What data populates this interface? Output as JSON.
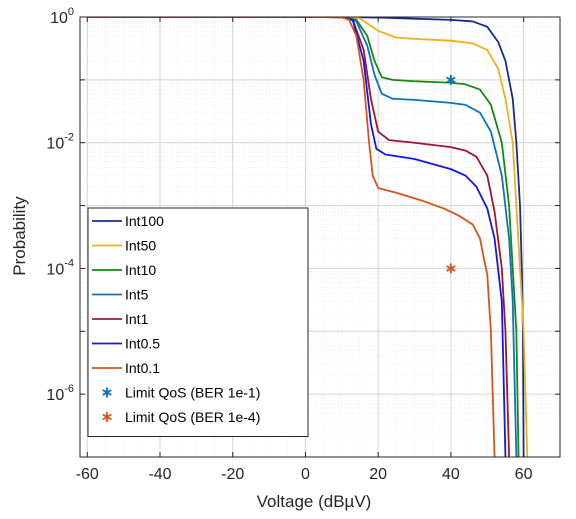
{
  "chart_data": {
    "type": "line",
    "title": "",
    "xlabel": "Voltage (dBµV)",
    "ylabel": "Probability",
    "xscale": "linear",
    "yscale": "log",
    "xlim": [
      -62,
      70
    ],
    "ylim_exp": [
      -7,
      0
    ],
    "x_ticks": [
      -60,
      -40,
      -20,
      0,
      20,
      40,
      60
    ],
    "x_tick_labels": [
      "-60",
      "-40",
      "-20",
      "0",
      "20",
      "40",
      "60"
    ],
    "y_tick_exponents": [
      0,
      -2,
      -4,
      -6
    ],
    "y_tick_base": "10",
    "y_tick_labels": [
      "0",
      "-2",
      "-4",
      "-6"
    ],
    "grid": true,
    "minor_grid": true,
    "legend_position": "bottom-left",
    "series": [
      {
        "name": "Int100",
        "color": "#1b2a8f",
        "points": [
          [
            -60,
            1
          ],
          [
            0,
            1
          ],
          [
            10,
            1
          ],
          [
            20,
            0.98
          ],
          [
            30,
            0.94
          ],
          [
            40,
            0.9
          ],
          [
            46,
            0.85
          ],
          [
            50,
            0.7
          ],
          [
            53,
            0.4
          ],
          [
            55,
            0.2
          ],
          [
            57,
            0.05
          ],
          [
            58,
            0.01
          ],
          [
            59,
            0.001
          ],
          [
            59.5,
            0.0001
          ],
          [
            59.8,
            1e-05
          ],
          [
            60,
            1e-07
          ]
        ]
      },
      {
        "name": "Int50",
        "color": "#edb120",
        "points": [
          [
            -60,
            1
          ],
          [
            0,
            1
          ],
          [
            10,
            0.99
          ],
          [
            15,
            0.95
          ],
          [
            20,
            0.6
          ],
          [
            25,
            0.47
          ],
          [
            30,
            0.45
          ],
          [
            40,
            0.42
          ],
          [
            46,
            0.38
          ],
          [
            50,
            0.3
          ],
          [
            53,
            0.15
          ],
          [
            55,
            0.05
          ],
          [
            57,
            0.01
          ],
          [
            58,
            0.001
          ],
          [
            59,
            0.0001
          ],
          [
            60,
            1e-05
          ],
          [
            61,
            1e-07
          ]
        ]
      },
      {
        "name": "Int10",
        "color": "#138a13",
        "points": [
          [
            -60,
            1
          ],
          [
            0,
            1
          ],
          [
            10,
            0.99
          ],
          [
            14,
            0.9
          ],
          [
            17,
            0.5
          ],
          [
            19,
            0.2
          ],
          [
            21,
            0.11
          ],
          [
            24,
            0.1
          ],
          [
            30,
            0.095
          ],
          [
            40,
            0.09
          ],
          [
            44,
            0.085
          ],
          [
            48,
            0.07
          ],
          [
            51,
            0.04
          ],
          [
            54,
            0.01
          ],
          [
            56,
            0.001
          ],
          [
            57,
            0.0001
          ],
          [
            58,
            1e-05
          ],
          [
            58.6,
            1e-07
          ]
        ]
      },
      {
        "name": "Int5",
        "color": "#0e72bd",
        "points": [
          [
            -60,
            1
          ],
          [
            0,
            1
          ],
          [
            10,
            0.99
          ],
          [
            14,
            0.85
          ],
          [
            17,
            0.35
          ],
          [
            19,
            0.12
          ],
          [
            21,
            0.06
          ],
          [
            24,
            0.05
          ],
          [
            30,
            0.048
          ],
          [
            40,
            0.043
          ],
          [
            44,
            0.04
          ],
          [
            48,
            0.03
          ],
          [
            51,
            0.015
          ],
          [
            54,
            0.003
          ],
          [
            56,
            0.0003
          ],
          [
            57,
            3e-05
          ],
          [
            58,
            1e-07
          ]
        ]
      },
      {
        "name": "Int1",
        "color": "#a2142f",
        "points": [
          [
            -60,
            1
          ],
          [
            0,
            1
          ],
          [
            10,
            0.99
          ],
          [
            13,
            0.9
          ],
          [
            16,
            0.3
          ],
          [
            18,
            0.05
          ],
          [
            20,
            0.015
          ],
          [
            23,
            0.011
          ],
          [
            30,
            0.01
          ],
          [
            40,
            0.0085
          ],
          [
            44,
            0.0075
          ],
          [
            47,
            0.006
          ],
          [
            50,
            0.003
          ],
          [
            52,
            0.0008
          ],
          [
            54,
            0.0001
          ],
          [
            55,
            1e-05
          ],
          [
            56,
            1e-07
          ]
        ]
      },
      {
        "name": "Int0.5",
        "color": "#1515e8",
        "points": [
          [
            -60,
            1
          ],
          [
            0,
            1
          ],
          [
            10,
            0.99
          ],
          [
            13,
            0.9
          ],
          [
            16,
            0.2
          ],
          [
            18,
            0.02
          ],
          [
            19.5,
            0.008
          ],
          [
            22,
            0.0065
          ],
          [
            30,
            0.0055
          ],
          [
            40,
            0.0038
          ],
          [
            44,
            0.003
          ],
          [
            47,
            0.002
          ],
          [
            50,
            0.0009
          ],
          [
            52,
            0.0003
          ],
          [
            54,
            3e-05
          ],
          [
            55,
            1e-07
          ]
        ]
      },
      {
        "name": "Int0.1",
        "color": "#d95319",
        "points": [
          [
            -60,
            1
          ],
          [
            0,
            1
          ],
          [
            10,
            0.99
          ],
          [
            12,
            0.9
          ],
          [
            14,
            0.5
          ],
          [
            16,
            0.1
          ],
          [
            17.5,
            0.01
          ],
          [
            18.5,
            0.003
          ],
          [
            20,
            0.0019
          ],
          [
            25,
            0.0016
          ],
          [
            32,
            0.0012
          ],
          [
            38,
            0.0009
          ],
          [
            42,
            0.0007
          ],
          [
            46,
            0.0005
          ],
          [
            48,
            0.0003
          ],
          [
            49,
            0.00015
          ],
          [
            50,
            8e-05
          ],
          [
            51,
            1e-05
          ],
          [
            52,
            1e-07
          ]
        ]
      }
    ],
    "markers": [
      {
        "name": "Limit QoS (BER 1e-1)",
        "color": "#0072bd",
        "symbol": "*",
        "x": 40,
        "y": 0.1
      },
      {
        "name": "Limit QoS (BER 1e-4)",
        "color": "#d95319",
        "symbol": "*",
        "x": 40,
        "y": 0.0001
      }
    ]
  }
}
